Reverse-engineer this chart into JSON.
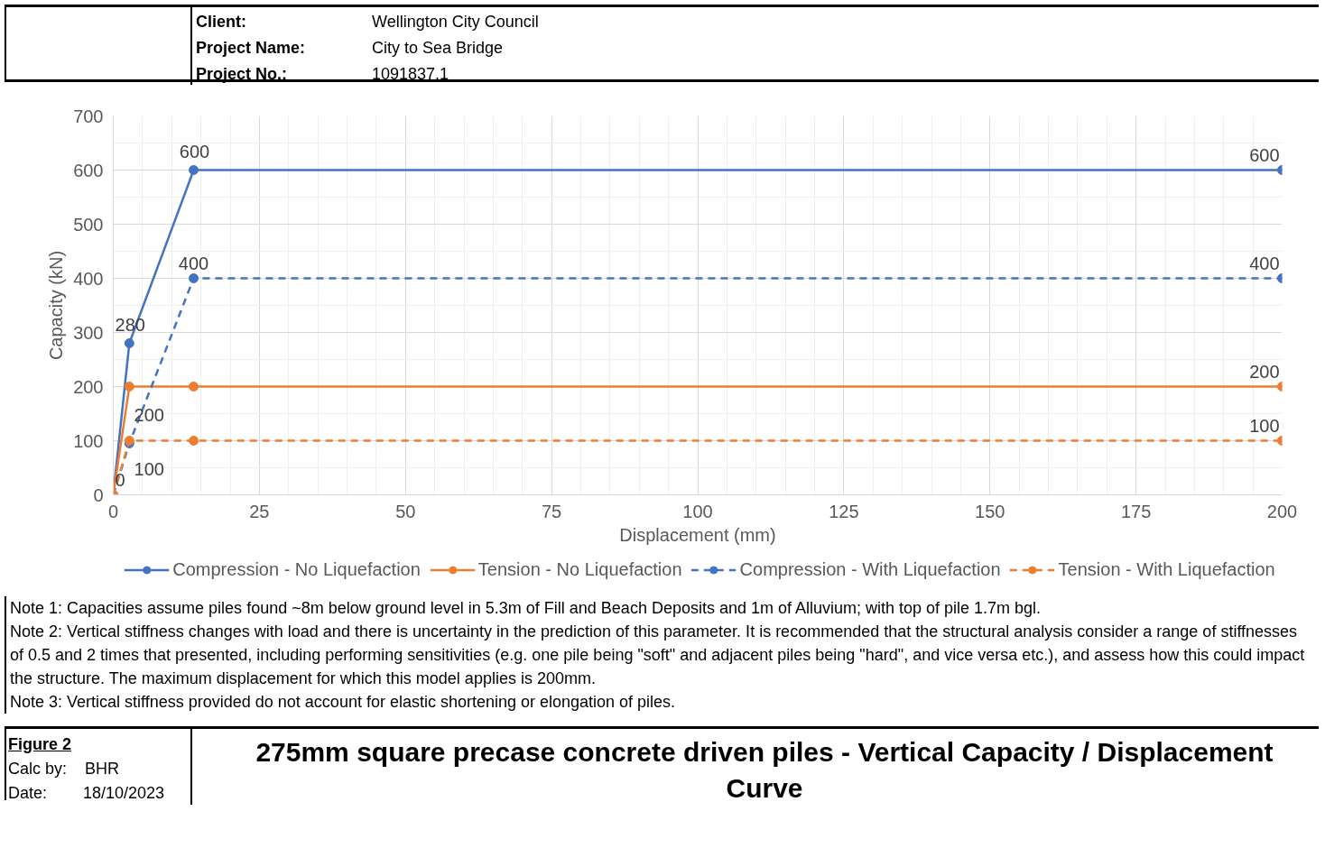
{
  "chart_data": {
    "type": "line",
    "title": "275mm square precase concrete driven piles - Vertical Capacity / Displacement Curve",
    "xlabel": "Displacement (mm)",
    "ylabel": "Capacity (kN)",
    "xlim": [
      0,
      200
    ],
    "xticks": [
      0,
      25,
      50,
      75,
      100,
      125,
      150,
      175,
      200
    ],
    "ylim": [
      0,
      700
    ],
    "yticks": [
      0,
      100,
      200,
      300,
      400,
      500,
      600,
      700
    ],
    "grid": true,
    "legend": "bottom",
    "marker": "circle",
    "series": [
      {
        "name": "Compression - No Liquefaction",
        "color": "#4472c4",
        "line_style": "solid",
        "x": [
          0,
          2.75,
          13.75,
          200
        ],
        "values": [
          0,
          280,
          600,
          600
        ],
        "value_labels": [
          "0",
          "280",
          "600",
          "600"
        ]
      },
      {
        "name": "Tension - No Liquefaction",
        "color": "#ed7d31",
        "line_style": "solid",
        "x": [
          0,
          2.75,
          13.75,
          200
        ],
        "values": [
          0,
          200,
          200,
          200
        ],
        "value_labels": [
          null,
          "200",
          null,
          "200"
        ]
      },
      {
        "name": "Compression - With Liquefaction",
        "color": "#4472c4",
        "line_style": "dashed",
        "x": [
          0,
          2.75,
          13.75,
          200
        ],
        "values": [
          0,
          95,
          400,
          400
        ],
        "value_labels": [
          null,
          null,
          "400",
          "400"
        ]
      },
      {
        "name": "Tension - With Liquefaction",
        "color": "#ed7d31",
        "line_style": "dashed",
        "x": [
          0,
          2.75,
          13.75,
          200
        ],
        "values": [
          0,
          100,
          100,
          100
        ],
        "value_labels": [
          null,
          "100",
          null,
          "100"
        ]
      }
    ],
    "annotations": [
      "Client:",
      "Wellington City Council",
      "Project Name:",
      "City to Sea Bridge",
      "Project No.:",
      "1091837.1",
      "Note 1: Capacities assume piles found ~8m below ground level in 5.3m of Fill and Beach Deposits and 1m of Alluvium; with top of pile 1.7m bgl.",
      "Note 2: Vertical stiffness changes with load and there is uncertainty in the prediction of this parameter. It is recommended that the structural analysis consider a range of stiffnesses of 0.5 and 2 times that presented, including performing sensitivities (e.g. one pile being \"soft\" and adjacent piles being \"hard\", and vice versa etc.), and assess how this could impact the structure. The maximum displacement for which this model applies is 200mm.",
      "Note 3: Vertical stiffness provided do not account for elastic shortening or elongation of piles.",
      "Figure 2",
      "Calc by:",
      "BHR",
      "Date:",
      "18/10/2023"
    ]
  }
}
